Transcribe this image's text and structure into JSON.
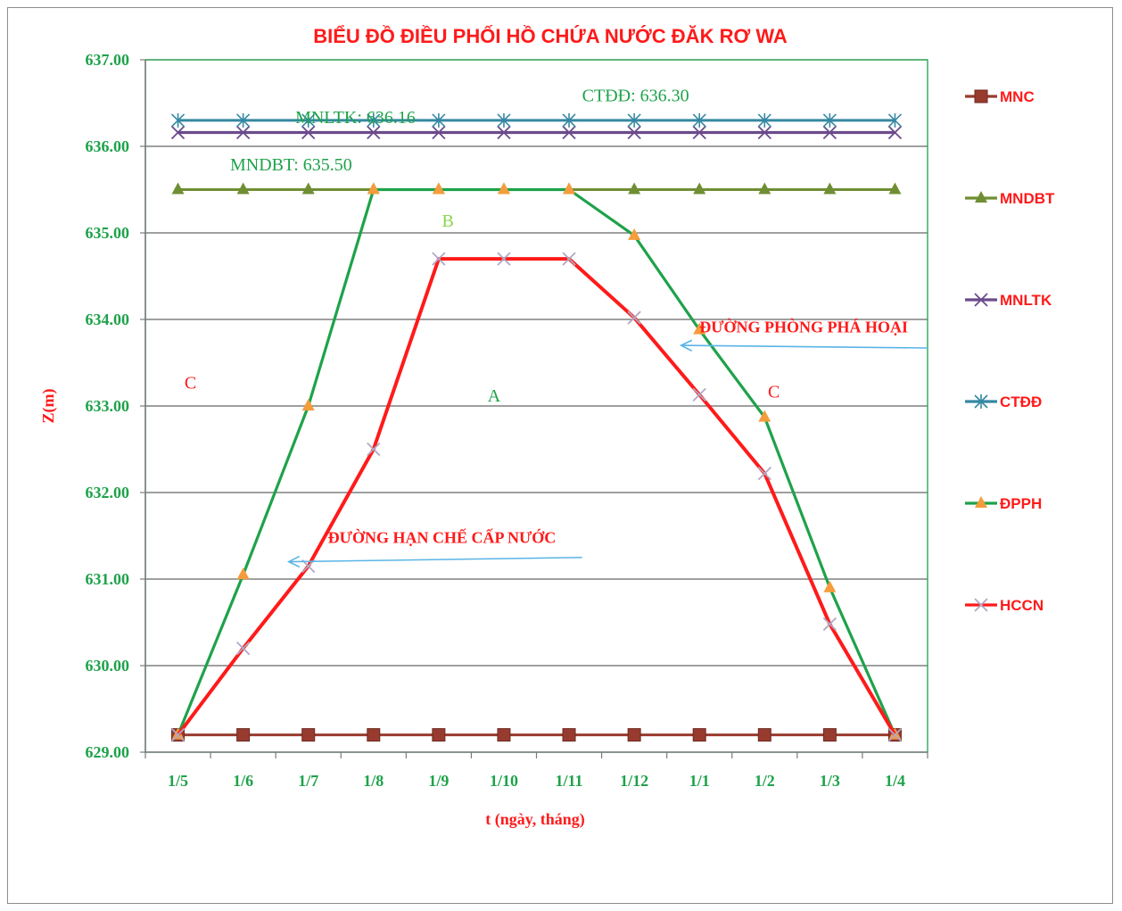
{
  "chart_data": {
    "type": "line",
    "title": "BIỂU ĐỒ ĐIỀU PHỐI HỒ CHỨA NƯỚC ĐĂK RƠ WA",
    "xlabel": "t (ngày, tháng)",
    "ylabel": "Z(m)",
    "ylim": [
      629.0,
      637.0
    ],
    "yticks": [
      "629.00",
      "630.00",
      "631.00",
      "632.00",
      "633.00",
      "634.00",
      "635.00",
      "636.00",
      "637.00"
    ],
    "categories": [
      "1/5",
      "1/6",
      "1/7",
      "1/8",
      "1/9",
      "1/10",
      "1/11",
      "1/12",
      "1/1",
      "1/2",
      "1/3",
      "1/4"
    ],
    "grid": "horizontal",
    "legend_position": "right",
    "series": [
      {
        "name": "MNC",
        "color": "#983b2f",
        "marker": "square",
        "values": [
          629.2,
          629.2,
          629.2,
          629.2,
          629.2,
          629.2,
          629.2,
          629.2,
          629.2,
          629.2,
          629.2,
          629.2
        ]
      },
      {
        "name": "MNDBT",
        "color": "#6f8e33",
        "marker": "triangle",
        "values": [
          635.5,
          635.5,
          635.5,
          635.5,
          635.5,
          635.5,
          635.5,
          635.5,
          635.5,
          635.5,
          635.5,
          635.5
        ]
      },
      {
        "name": "MNLTK",
        "color": "#6b4a8c",
        "marker": "x",
        "values": [
          636.16,
          636.16,
          636.16,
          636.16,
          636.16,
          636.16,
          636.16,
          636.16,
          636.16,
          636.16,
          636.16,
          636.16
        ]
      },
      {
        "name": "CTĐĐ",
        "color": "#3588a2",
        "marker": "star",
        "values": [
          636.3,
          636.3,
          636.3,
          636.3,
          636.3,
          636.3,
          636.3,
          636.3,
          636.3,
          636.3,
          636.3,
          636.3
        ]
      },
      {
        "name": "ĐPPH",
        "color": "#1ea24a",
        "marker": "triangle-orange",
        "marker_color": "#f59c3c",
        "values": [
          629.2,
          631.05,
          633.0,
          635.5,
          635.5,
          635.5,
          635.5,
          634.97,
          633.88,
          632.87,
          630.9,
          629.2
        ]
      },
      {
        "name": "HCCN",
        "color": "#ff1a1a",
        "marker": "x",
        "marker_color": "#b0a8c4",
        "values": [
          629.2,
          630.2,
          631.15,
          632.5,
          634.7,
          634.7,
          634.7,
          634.02,
          633.13,
          632.22,
          630.48,
          629.2
        ]
      }
    ],
    "annotations": [
      {
        "id": "mnltk",
        "text": "MNLTK: 636.16",
        "x": 2.3,
        "y": 636.27,
        "style": "ann-green"
      },
      {
        "id": "ctdd",
        "text": "CTĐĐ: 636.30",
        "x": 6.7,
        "y": 636.52,
        "style": "ann-green"
      },
      {
        "id": "mndbt",
        "text": "MNDBT: 635.50",
        "x": 1.3,
        "y": 635.72,
        "style": "ann-green"
      },
      {
        "id": "zone-b",
        "text": "B",
        "x": 4.55,
        "y": 635.07,
        "style": "ann-lightgreen"
      },
      {
        "id": "zone-a",
        "text": "A",
        "x": 5.25,
        "y": 633.05,
        "style": "ann-green"
      },
      {
        "id": "zone-c-left",
        "text": "C",
        "x": 0.6,
        "y": 633.2,
        "style": "ann-red"
      },
      {
        "id": "zone-c-right",
        "text": "C",
        "x": 9.55,
        "y": 633.1,
        "style": "ann-red"
      },
      {
        "id": "dpph-label",
        "text": "ĐƯỜNG PHÒNG PHÁ HOẠI",
        "x": 8.5,
        "y": 633.85,
        "style": "ann-redbold"
      },
      {
        "id": "hccn-label",
        "text": "ĐƯỜNG HẠN CHẾ CẤP NƯỚC",
        "x": 2.8,
        "y": 631.42,
        "style": "ann-redbold"
      }
    ],
    "arrows": [
      {
        "id": "arrow-dpph",
        "color": "#5ab4e6",
        "from": [
          12.0,
          633.67
        ],
        "to": [
          8.22,
          633.7
        ]
      },
      {
        "id": "arrow-hccn",
        "color": "#5ab4e6",
        "from": [
          6.7,
          631.25
        ],
        "to": [
          2.2,
          631.2
        ]
      }
    ]
  }
}
